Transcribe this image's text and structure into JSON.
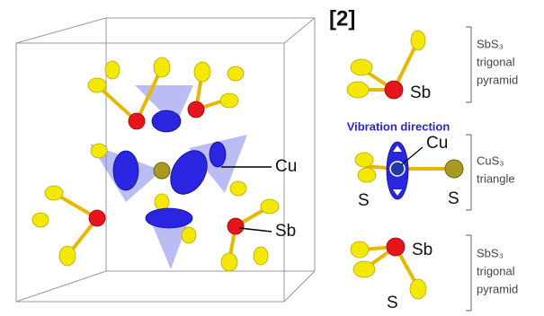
{
  "citation": "[2]",
  "left_panel": {
    "labels": [
      "Cu",
      "Sb"
    ]
  },
  "right_panel": {
    "vibration_title": "Vibration direction",
    "units": [
      {
        "atoms": [
          "Sb"
        ],
        "caption": [
          "SbS₃",
          "trigonal",
          "pyramid"
        ]
      },
      {
        "atoms": [
          "Cu",
          "S",
          "S"
        ],
        "caption": [
          "CuS₃",
          "triangle"
        ]
      },
      {
        "atoms": [
          "Sb",
          "S"
        ],
        "caption": [
          "SbS₃",
          "trigonal",
          "pyramid"
        ]
      }
    ]
  }
}
